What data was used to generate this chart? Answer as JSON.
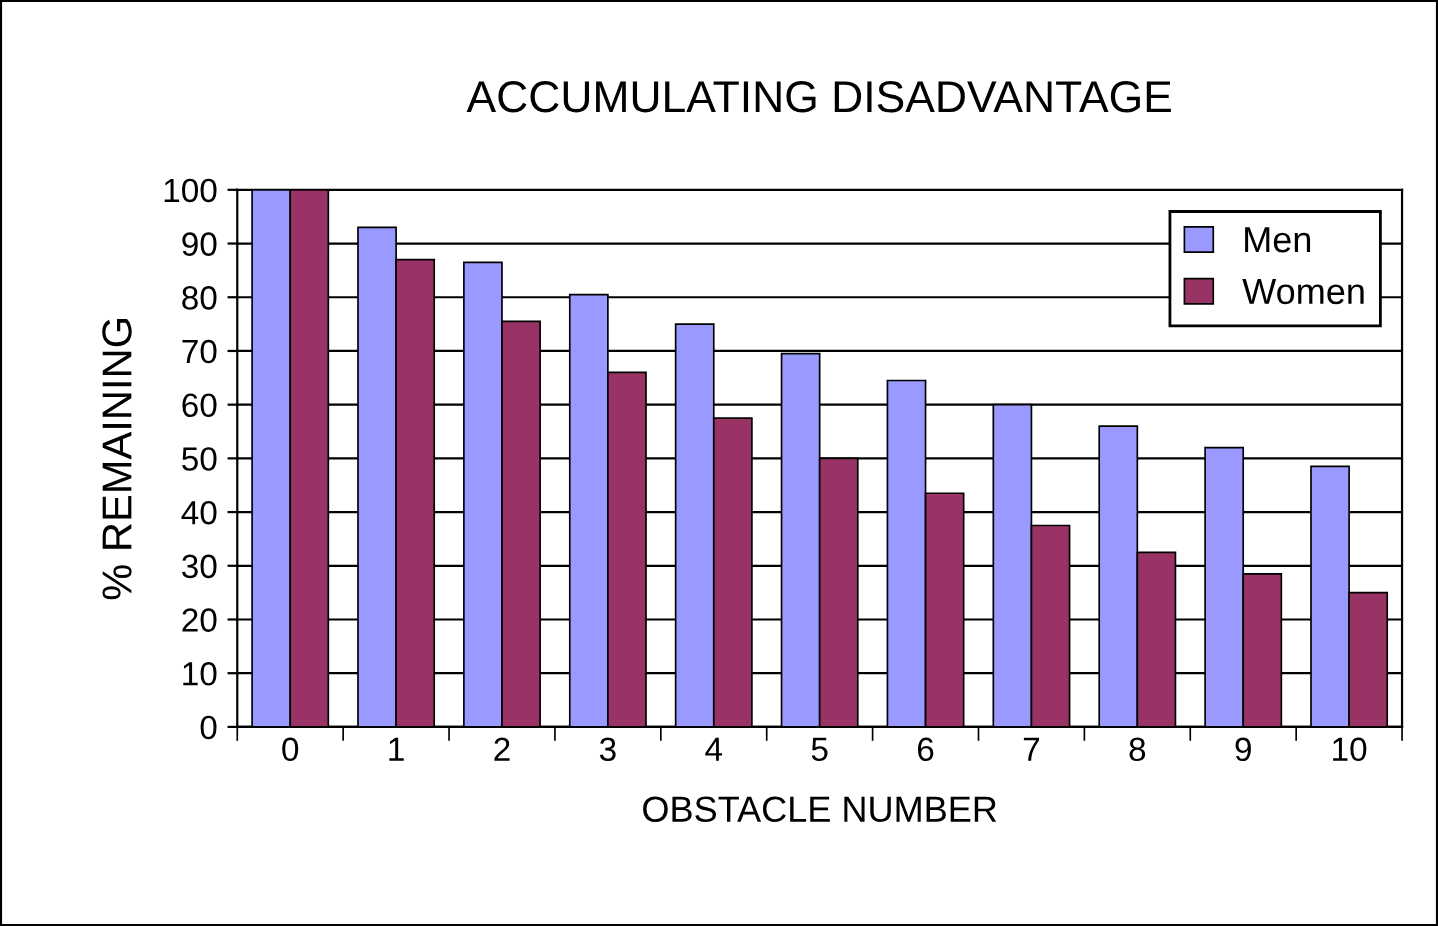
{
  "chart_data": {
    "type": "bar",
    "title": "ACCUMULATING DISADVANTAGE",
    "xlabel": "OBSTACLE NUMBER",
    "ylabel": "% REMAINING",
    "categories": [
      "0",
      "1",
      "2",
      "3",
      "4",
      "5",
      "6",
      "7",
      "8",
      "9",
      "10"
    ],
    "series": [
      {
        "name": "Men",
        "color": "#9999ff",
        "values": [
          100,
          93,
          86.5,
          80.5,
          75,
          69.5,
          64.5,
          60,
          56,
          52,
          48.5
        ]
      },
      {
        "name": "Women",
        "color": "#993366",
        "values": [
          100,
          87,
          75.5,
          66,
          57.5,
          50,
          43.5,
          37.5,
          32.5,
          28.5,
          25
        ]
      }
    ],
    "ylim": [
      0,
      100
    ],
    "yticks": [
      0,
      10,
      20,
      30,
      40,
      50,
      60,
      70,
      80,
      90,
      100
    ],
    "grid": "y",
    "legend": "top right"
  }
}
